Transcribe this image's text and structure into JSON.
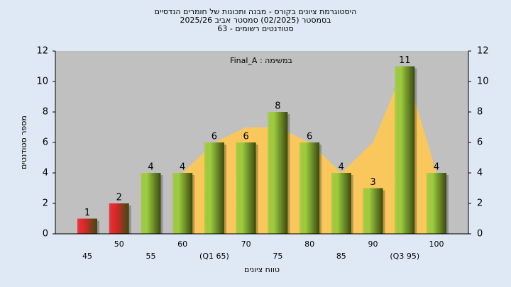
{
  "chart_data": {
    "type": "bar",
    "title": "היסטוגרמת ציונים בקורס - מבנה ותכונות של חומרים הנדסיים",
    "subtitle": "בסמסטר  (02/2025)  סמסטר אביב 2025/26",
    "subtitle2": "סטודנטים רשומים - 63",
    "annotation": "Final_A : במשימה",
    "x_label": "טווח ציונים",
    "y_label": "מספר סטודנטים",
    "categories": [
      "45",
      "50",
      "55",
      "60",
      "(Q1 65)",
      "70",
      "75",
      "80",
      "85",
      "90",
      "(Q3 95)",
      "100"
    ],
    "values": [
      1,
      2,
      4,
      4,
      6,
      6,
      8,
      6,
      4,
      3,
      11,
      4
    ],
    "colors": [
      "#e4262c",
      "#e4262c",
      "#9dcc3e",
      "#9dcc3e",
      "#9dcc3e",
      "#9dcc3e",
      "#9dcc3e",
      "#9dcc3e",
      "#9dcc3e",
      "#9dcc3e",
      "#9dcc3e",
      "#9dcc3e"
    ],
    "area": {
      "color": "#ffc850",
      "values": [
        null,
        null,
        null,
        4,
        6,
        7,
        7,
        6,
        4,
        6,
        11,
        4
      ]
    },
    "ylim": [
      0,
      12
    ],
    "yticks": [
      0,
      2,
      4,
      6,
      8,
      10,
      12
    ],
    "y2lim": [
      0,
      12
    ],
    "y2ticks": [
      0,
      2,
      4,
      6,
      8,
      10,
      12
    ]
  }
}
